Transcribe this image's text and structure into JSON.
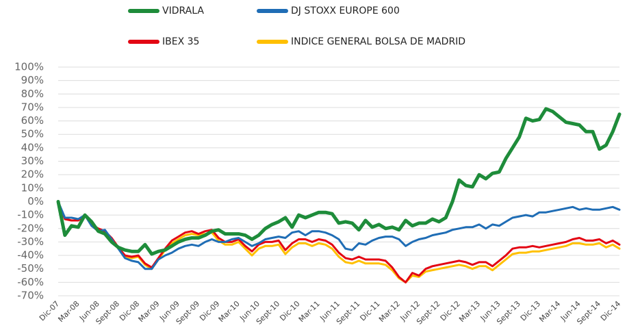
{
  "chart_data": {
    "type": "line",
    "categories": [
      "Dic-07",
      null,
      null,
      "Mar-08",
      null,
      null,
      "Jun-08",
      null,
      null,
      "Sept-08",
      null,
      null,
      "Dic-08",
      null,
      null,
      "Mar-09",
      null,
      null,
      "Jun-09",
      null,
      null,
      "Sept-09",
      null,
      null,
      "Dic-09",
      null,
      null,
      "Mar-10",
      null,
      null,
      "Jun-10",
      null,
      null,
      "Sept-10",
      null,
      null,
      "Dic-10",
      null,
      null,
      "Mar-11",
      null,
      null,
      "Jun-11",
      null,
      null,
      "Sept-11",
      null,
      null,
      "Dic-11",
      null,
      null,
      "Mar-12",
      null,
      null,
      "Jun-12",
      null,
      null,
      "Sept-12",
      null,
      null,
      "Dic-12",
      null,
      null,
      "Mar-13",
      null,
      null,
      "Jun-13",
      null,
      null,
      "Sept-13",
      null,
      null,
      "Dic-13",
      null,
      null,
      "Mar-14",
      null,
      null,
      "Jun-14",
      null,
      null,
      "Sept-14",
      null,
      null,
      "Dic-14"
    ],
    "series": [
      {
        "name": "VIDRALA",
        "color": "#1e8c3a",
        "values": [
          0,
          -25,
          -18,
          -19,
          -10,
          -15,
          -22,
          -24,
          -30,
          -34,
          -36,
          -37,
          -37,
          -32,
          -39,
          -37,
          -36,
          -33,
          -30,
          -28,
          -27,
          -27,
          -25,
          -22,
          -21,
          -24,
          -24,
          -24,
          -25,
          -28,
          -25,
          -20,
          -17,
          -15,
          -12,
          -19,
          -10,
          -12,
          -10,
          -8,
          -8,
          -9,
          -16,
          -15,
          -16,
          -21,
          -14,
          -19,
          -17,
          -20,
          -19,
          -21,
          -14,
          -18,
          -16,
          -16,
          -13,
          -15,
          -12,
          0,
          16,
          12,
          11,
          20,
          17,
          21,
          22,
          32,
          40,
          48,
          62,
          60,
          61,
          69,
          67,
          63,
          59,
          58,
          57,
          52,
          52,
          39,
          42,
          52,
          65
        ]
      },
      {
        "name": "DJ STOXX EUROPE 600",
        "color": "#1f6db5",
        "values": [
          0,
          -12,
          -12,
          -13,
          -10,
          -18,
          -22,
          -21,
          -28,
          -35,
          -42,
          -44,
          -45,
          -50,
          -50,
          -43,
          -40,
          -38,
          -35,
          -33,
          -32,
          -33,
          -30,
          -28,
          -30,
          -30,
          -28,
          -27,
          -30,
          -33,
          -31,
          -28,
          -27,
          -26,
          -27,
          -23,
          -22,
          -25,
          -22,
          -22,
          -23,
          -25,
          -28,
          -35,
          -36,
          -31,
          -32,
          -29,
          -27,
          -26,
          -26,
          -28,
          -33,
          -30,
          -28,
          -27,
          -25,
          -24,
          -23,
          -21,
          -20,
          -19,
          -19,
          -17,
          -20,
          -17,
          -18,
          -15,
          -12,
          -11,
          -10,
          -11,
          -8,
          -8,
          -7,
          -6,
          -5,
          -4,
          -6,
          -5,
          -6,
          -6,
          -5,
          -4,
          -6
        ]
      },
      {
        "name": "IBEX 35",
        "color": "#e30613",
        "values": [
          0,
          -13,
          -14,
          -14,
          -10,
          -17,
          -20,
          -22,
          -27,
          -34,
          -40,
          -41,
          -40,
          -46,
          -49,
          -42,
          -35,
          -29,
          -26,
          -23,
          -22,
          -24,
          -22,
          -21,
          -27,
          -30,
          -30,
          -28,
          -33,
          -37,
          -32,
          -30,
          -30,
          -29,
          -36,
          -31,
          -28,
          -28,
          -30,
          -28,
          -29,
          -32,
          -38,
          -42,
          -43,
          -41,
          -43,
          -43,
          -43,
          -44,
          -49,
          -56,
          -60,
          -53,
          -55,
          -50,
          -48,
          -47,
          -46,
          -45,
          -44,
          -45,
          -47,
          -45,
          -45,
          -48,
          -44,
          -40,
          -35,
          -34,
          -34,
          -33,
          -34,
          -33,
          -32,
          -31,
          -30,
          -28,
          -27,
          -29,
          -29,
          -28,
          -31,
          -29,
          -32
        ]
      },
      {
        "name": "INDICE GENERAL BOLSA DE MADRID",
        "color": "#ffc000",
        "values": [
          0,
          -13,
          -14,
          -14,
          -10,
          -18,
          -21,
          -23,
          -28,
          -35,
          -41,
          -42,
          -41,
          -47,
          -50,
          -43,
          -36,
          -31,
          -28,
          -25,
          -24,
          -25,
          -24,
          -23,
          -29,
          -32,
          -32,
          -30,
          -35,
          -40,
          -35,
          -33,
          -33,
          -32,
          -39,
          -34,
          -31,
          -31,
          -33,
          -31,
          -32,
          -35,
          -41,
          -45,
          -46,
          -44,
          -46,
          -46,
          -46,
          -47,
          -51,
          -57,
          -60,
          -55,
          -56,
          -52,
          -51,
          -50,
          -49,
          -48,
          -47,
          -48,
          -50,
          -48,
          -48,
          -51,
          -47,
          -43,
          -39,
          -38,
          -38,
          -37,
          -37,
          -36,
          -35,
          -34,
          -33,
          -31,
          -31,
          -32,
          -32,
          -31,
          -34,
          -32,
          -35
        ]
      }
    ],
    "ylim": [
      -70,
      100
    ],
    "yticks": [
      {
        "value": 100,
        "label": "100%"
      },
      {
        "value": 90,
        "label": "90%"
      },
      {
        "value": 80,
        "label": "80%"
      },
      {
        "value": 70,
        "label": "70%"
      },
      {
        "value": 60,
        "label": "60%"
      },
      {
        "value": 50,
        "label": "50%"
      },
      {
        "value": 40,
        "label": "40%"
      },
      {
        "value": 30,
        "label": "30%"
      },
      {
        "value": 20,
        "label": "20%"
      },
      {
        "value": 10,
        "label": "10%"
      },
      {
        "value": 0,
        "label": "0%"
      },
      {
        "value": -10,
        "label": "-10%"
      },
      {
        "value": -20,
        "label": "-20%"
      },
      {
        "value": -30,
        "label": "-30%"
      },
      {
        "value": -40,
        "label": "-40%"
      },
      {
        "value": -50,
        "label": "-50%"
      },
      {
        "value": -60,
        "label": "-60%"
      },
      {
        "value": -70,
        "label": "-70%"
      }
    ],
    "grid": true
  }
}
